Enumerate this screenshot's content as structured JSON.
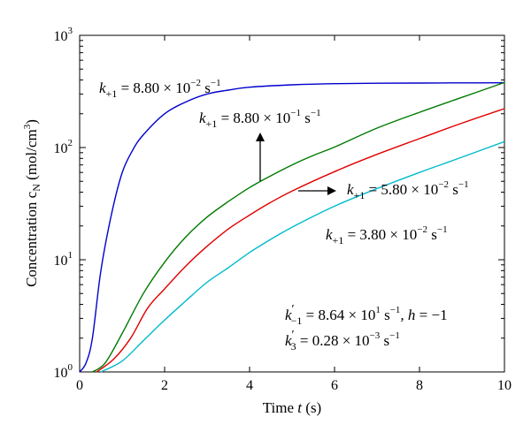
{
  "chart_data": {
    "type": "line",
    "xlabel_prefix": "Time ",
    "xlabel_var": "t",
    "xlabel_unit": " (s)",
    "ylabel_prefix": "Concentration c",
    "ylabel_sub": "N",
    "ylabel_unit": " (mol/cm",
    "ylabel_unit_sup": "3",
    "ylabel_close": ")",
    "xlim": [
      0,
      10
    ],
    "ylim": [
      1,
      1000
    ],
    "yscale": "log",
    "grid": false,
    "x_ticks": [
      "0",
      "2",
      "4",
      "6",
      "8",
      "10"
    ],
    "y_ticks": [
      {
        "base": "10",
        "exp": "0"
      },
      {
        "base": "10",
        "exp": "1"
      },
      {
        "base": "10",
        "exp": "2"
      },
      {
        "base": "10",
        "exp": "3"
      }
    ],
    "series": [
      {
        "color": "#0000cc",
        "x": [
          0.0,
          0.15,
          0.3,
          0.5,
          0.75,
          1.0,
          1.25,
          1.5,
          2.0,
          2.5,
          3.0,
          3.5,
          4.0,
          5.0,
          6.0,
          7.0,
          8.0,
          9.0,
          10.0
        ],
        "y": [
          1.0,
          1.2,
          2.0,
          8.0,
          25.5,
          59.5,
          95.0,
          130.0,
          200.0,
          255.0,
          300.0,
          325.0,
          345.0,
          362.0,
          371.0,
          374.5,
          376.0,
          377.0,
          378.0
        ]
      },
      {
        "color": "#007a00",
        "x": [
          0.3,
          0.6,
          1.0,
          1.5,
          2.0,
          2.5,
          3.0,
          3.5,
          4.0,
          4.5,
          5.0,
          5.5,
          6.0,
          7.0,
          8.0,
          9.0,
          10.0
        ],
        "y": [
          1.0,
          1.2,
          2.2,
          5.0,
          9.5,
          16.0,
          24.0,
          33.0,
          44.0,
          56.0,
          70.0,
          85.0,
          101.0,
          149.0,
          206.0,
          280.0,
          380.0
        ]
      },
      {
        "color": "#e00000",
        "x": [
          0.4,
          0.8,
          1.2,
          1.6,
          2.0,
          2.5,
          3.0,
          3.5,
          4.0,
          4.5,
          5.0,
          6.0,
          7.0,
          8.0,
          9.0,
          10.0
        ],
        "y": [
          1.0,
          1.3,
          2.0,
          3.7,
          5.5,
          8.8,
          13.2,
          18.8,
          25.0,
          32.5,
          41.0,
          61.0,
          87.0,
          120.0,
          165.0,
          222.0
        ]
      },
      {
        "color": "#00bbcc",
        "x": [
          0.5,
          1.0,
          1.5,
          2.0,
          2.5,
          3.0,
          3.5,
          4.0,
          4.5,
          5.0,
          6.0,
          7.0,
          8.0,
          9.0,
          10.0
        ],
        "y": [
          1.0,
          1.25,
          1.9,
          2.9,
          4.3,
          6.3,
          8.5,
          11.6,
          15.2,
          19.5,
          30.0,
          43.0,
          60.0,
          82.0,
          113.0
        ]
      }
    ],
    "annotations": {
      "k": "k",
      "times": " × ",
      "ten": "10",
      "s": " s",
      "prime": "′",
      "l1_sub": "+1",
      "l1_eq": " = 8.80",
      "l1_exp": "−2",
      "l1_sexp": "−1",
      "l2_sub": "+1",
      "l2_eq": " = 8.80",
      "l2_exp": "−1",
      "l2_sexp": "−1",
      "l3_sub": "+1",
      "l3_eq": " = 5.80",
      "l3_exp": "−2",
      "l3_sexp": "−1",
      "l4_sub": "+1",
      "l4_eq": " = 3.80",
      "l4_exp": "−2",
      "l4_sexp": "−1",
      "p1_sub": "−1",
      "p1_eq": " = 8.64",
      "p1_exp": "1",
      "p1_sexp": "−1",
      "p1_h": ", h",
      "p1_hval": " = −1",
      "p2_sub": "3",
      "p2_eq": " = 0.28",
      "p2_exp": "−3",
      "p2_sexp": "−1"
    }
  }
}
